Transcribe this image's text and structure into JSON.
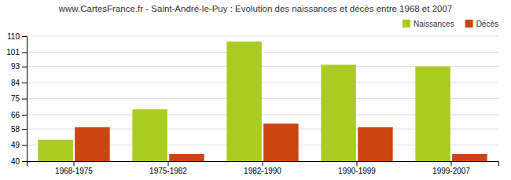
{
  "chart_data": {
    "type": "bar",
    "title": "www.CartesFrance.fr - Saint-André-le-Puy : Evolution des naissances et décès entre 1968 et 2007",
    "categories": [
      "1968-1975",
      "1975-1982",
      "1982-1990",
      "1990-1999",
      "1999-2007"
    ],
    "series": [
      {
        "name": "Naissances",
        "color": "#aacc22",
        "values": [
          52,
          69,
          107,
          94,
          93
        ]
      },
      {
        "name": "Décès",
        "color": "#cc4411",
        "values": [
          59,
          44,
          61,
          59,
          44
        ]
      }
    ],
    "ylim": [
      40,
      110
    ],
    "yticks": [
      40,
      49,
      58,
      66,
      75,
      84,
      93,
      101,
      110
    ],
    "grid": true,
    "legend": "upper right"
  }
}
